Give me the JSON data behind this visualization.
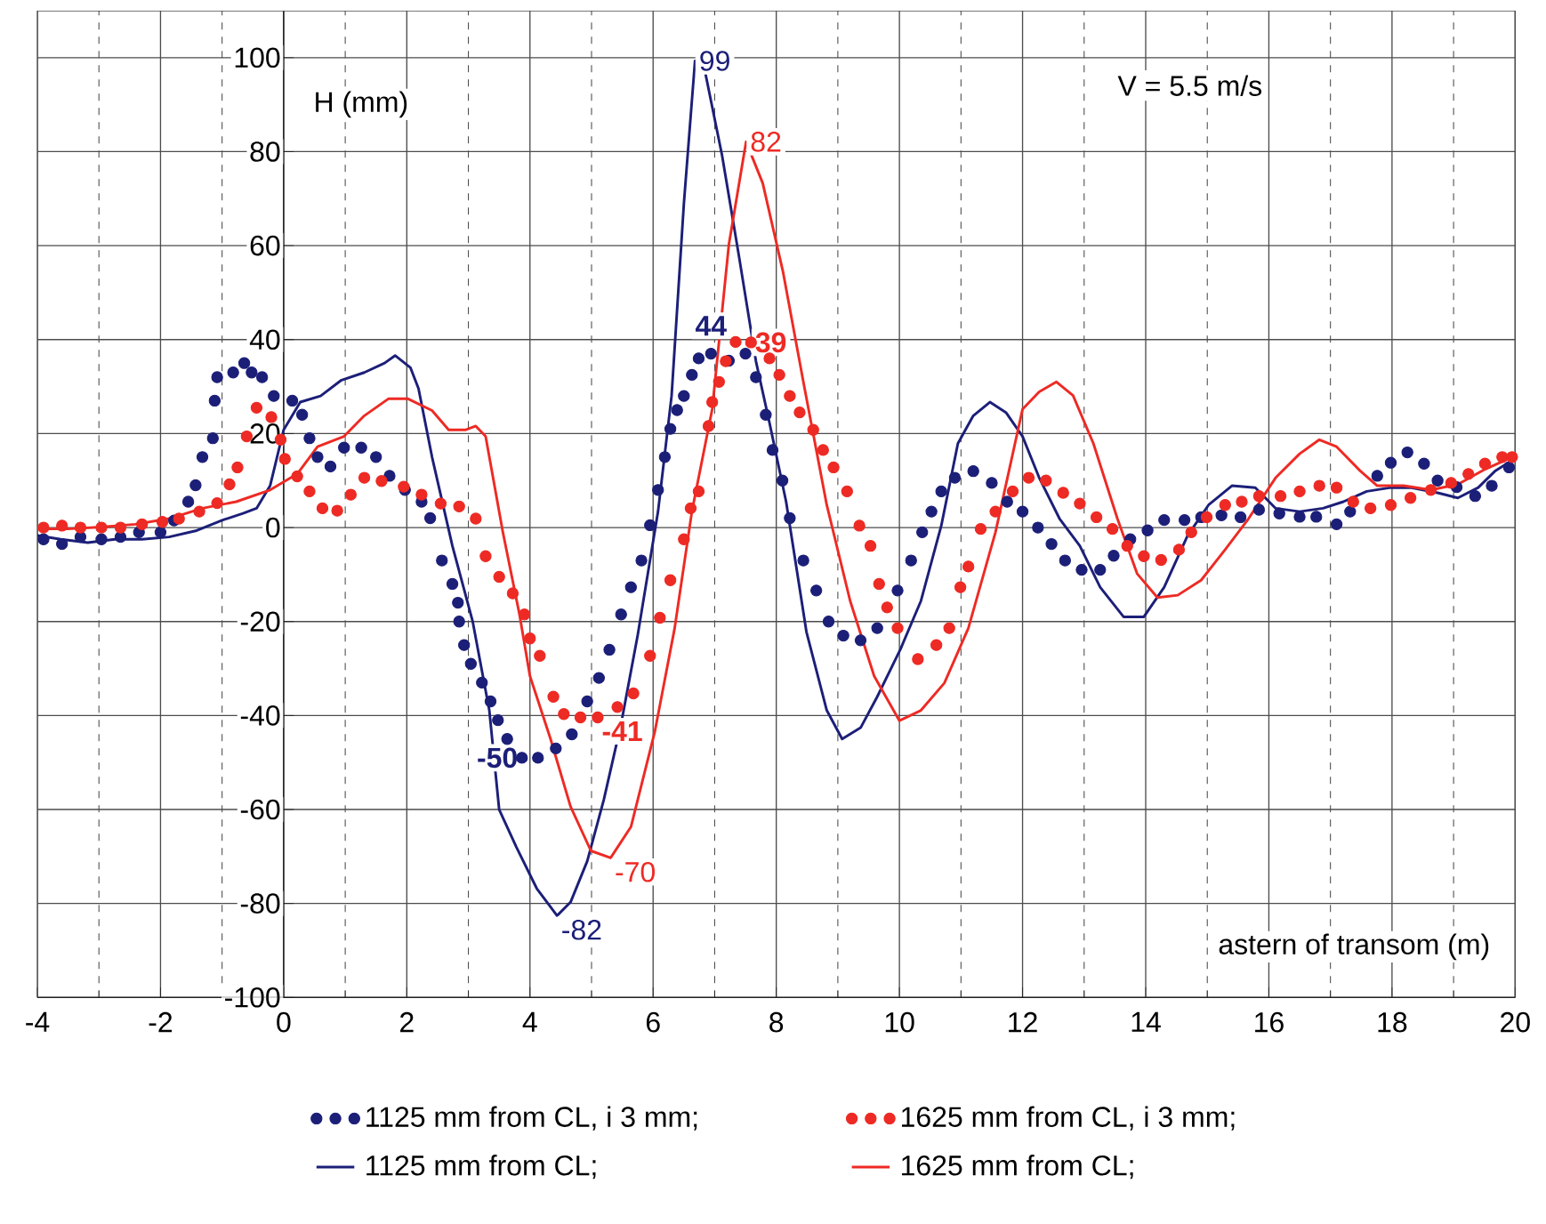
{
  "chart_data": {
    "type": "line",
    "xlabel": "astern of transom (m)",
    "ylabel": "H (mm)",
    "xlim": [
      -4,
      20
    ],
    "ylim": [
      -100,
      110
    ],
    "xticks": [
      -4,
      -2,
      0,
      2,
      4,
      6,
      8,
      10,
      12,
      14,
      16,
      18,
      20
    ],
    "yticks": [
      -100,
      -80,
      -60,
      -40,
      -20,
      0,
      20,
      40,
      60,
      80,
      100
    ],
    "grid": true,
    "legend": "bottom",
    "annotations": [
      "V = 5.5 m/s",
      {
        "text": "99",
        "x": 6.68,
        "y": 99.3
      },
      {
        "text": "82",
        "x": 7.51,
        "y": 82.1
      },
      {
        "text": "44",
        "x": 6.94,
        "y": 40
      },
      {
        "text": "39",
        "x": 7.59,
        "y": 39.4
      },
      {
        "text": "-50",
        "x": 3.87,
        "y": -49
      },
      {
        "text": "-41",
        "x": 5.1,
        "y": -40.4
      },
      {
        "text": "-82",
        "x": 4.44,
        "y": -82.6
      },
      {
        "text": "-70",
        "x": 5.31,
        "y": -70.3
      }
    ],
    "series": [
      {
        "name": "1125 mm from CL,  i 3 mm;",
        "type": "scatter",
        "marker": "circle",
        "color": "#1c1f78",
        "x": [
          -3.9,
          -3.6,
          -3.3,
          -2.96,
          -2.65,
          -2.35,
          -2.0,
          -1.78,
          -1.55,
          -1.43,
          -1.32,
          -1.15,
          -1.12,
          -1.08,
          -0.82,
          -0.64,
          -0.52,
          -0.35,
          -0.16,
          0.14,
          0.3,
          0.42,
          0.55,
          0.76,
          0.98,
          1.26,
          1.5,
          1.72,
          1.97,
          2.24,
          2.38,
          2.57,
          2.74,
          2.83,
          2.85,
          2.93,
          3.04,
          3.22,
          3.36,
          3.48,
          3.63,
          3.87,
          4.13,
          4.42,
          4.68,
          4.93,
          5.12,
          5.29,
          5.48,
          5.64,
          5.81,
          5.95,
          6.08,
          6.19,
          6.28,
          6.39,
          6.5,
          6.63,
          6.74,
          6.94,
          7.23,
          7.5,
          7.67,
          7.83,
          7.94,
          8.1,
          8.22,
          8.44,
          8.65,
          8.85,
          9.09,
          9.37,
          9.64,
          9.97,
          10.19,
          10.37,
          10.52,
          10.68,
          10.9,
          11.2,
          11.5,
          11.75,
          12.0,
          12.25,
          12.47,
          12.69,
          12.96,
          13.26,
          13.48,
          13.75,
          14.03,
          14.3,
          14.63,
          14.9,
          15.23,
          15.54,
          15.84,
          16.17,
          16.5,
          16.77,
          17.1,
          17.32,
          17.76,
          17.98,
          18.25,
          18.52,
          18.74,
          19.05,
          19.35,
          19.62,
          19.9
        ],
        "values": [
          -2.5,
          -3.5,
          -2,
          -2.5,
          -2,
          -1,
          -1,
          1.5,
          5.5,
          9,
          15,
          19,
          27,
          32,
          33,
          35,
          33,
          32,
          28,
          27,
          24,
          19,
          15,
          13,
          17,
          17,
          15,
          11,
          8,
          5.5,
          2,
          -7,
          -12,
          -16,
          -20,
          -25,
          -29,
          -33,
          -37,
          -41,
          -45,
          -49,
          -49,
          -47,
          -44,
          -37,
          -32,
          -26,
          -18.5,
          -12.7,
          -7,
          0.5,
          8,
          15,
          21,
          25,
          28,
          32.5,
          36,
          37,
          35.5,
          37,
          32,
          24,
          16.5,
          10,
          2,
          -7,
          -13.4,
          -20,
          -23,
          -24,
          -21.4,
          -13.4,
          -7,
          -1,
          3.4,
          7.7,
          10.6,
          12,
          9.5,
          5.5,
          3.4,
          0,
          -3.5,
          -7,
          -9,
          -9,
          -6,
          -2.5,
          -0.6,
          1.6,
          1.6,
          2.2,
          2.6,
          2.2,
          3.8,
          3,
          2.3,
          2.3,
          0.7,
          3.4,
          11,
          13.8,
          16,
          13.6,
          10,
          8.6,
          6.7,
          8.9,
          12.8
        ]
      },
      {
        "name": "1625 mm from  CL,  i 3 mm;",
        "type": "scatter",
        "marker": "circle",
        "color": "#ee2a24",
        "x": [
          -3.9,
          -3.6,
          -3.3,
          -2.96,
          -2.65,
          -2.3,
          -1.97,
          -1.7,
          -1.37,
          -1.08,
          -0.88,
          -0.75,
          -0.6,
          -0.44,
          -0.2,
          -0.05,
          0.02,
          0.22,
          0.42,
          0.63,
          0.87,
          1.09,
          1.31,
          1.59,
          1.95,
          2.24,
          2.55,
          2.85,
          3.12,
          3.28,
          3.5,
          3.72,
          3.91,
          4.0,
          4.16,
          4.38,
          4.55,
          4.82,
          5.1,
          5.42,
          5.68,
          5.95,
          6.11,
          6.28,
          6.5,
          6.61,
          6.74,
          6.9,
          6.96,
          7.07,
          7.18,
          7.34,
          7.59,
          7.89,
          8.05,
          8.22,
          8.38,
          8.6,
          8.76,
          8.93,
          9.15,
          9.35,
          9.53,
          9.67,
          9.8,
          9.97,
          10.3,
          10.6,
          10.81,
          10.99,
          11.12,
          11.32,
          11.56,
          11.84,
          12.1,
          12.38,
          12.66,
          12.93,
          13.2,
          13.46,
          13.7,
          13.97,
          14.25,
          14.54,
          14.74,
          14.99,
          15.29,
          15.56,
          15.84,
          16.19,
          16.5,
          16.82,
          17.1,
          17.37,
          17.65,
          17.98,
          18.3,
          18.63,
          18.96,
          19.24,
          19.51,
          19.79,
          19.95
        ],
        "values": [
          0,
          0.4,
          0,
          0,
          0,
          0.7,
          1.2,
          1.9,
          3.4,
          5.2,
          9.2,
          12.8,
          19.4,
          25.5,
          23.5,
          18.7,
          14.6,
          10.9,
          7.7,
          4.1,
          3.6,
          7,
          10.6,
          9.9,
          8.7,
          7,
          5.1,
          4.5,
          1.9,
          -6.1,
          -10.5,
          -14,
          -18.5,
          -23.6,
          -27.3,
          -36,
          -39.7,
          -40.4,
          -40.4,
          -38.2,
          -35.3,
          -27.3,
          -19.2,
          -11.2,
          -2.5,
          4.1,
          7.7,
          21.6,
          26.7,
          31,
          35.4,
          39.5,
          39.4,
          36,
          32.5,
          28,
          24.5,
          20.8,
          16.5,
          12.8,
          7.7,
          0.4,
          -3.9,
          -12,
          -17,
          -21.4,
          -28,
          -25,
          -21.4,
          -12.7,
          -8.3,
          -0.3,
          3.4,
          7.7,
          10.6,
          10,
          7.4,
          5.1,
          2.2,
          -0.3,
          -3.9,
          -6.1,
          -6.9,
          -4.7,
          -1,
          2.2,
          4.8,
          5.5,
          6.7,
          6.7,
          7.7,
          8.9,
          8.5,
          5.5,
          4.1,
          4.8,
          6.3,
          8,
          9.5,
          11.4,
          13.6,
          15,
          15
        ]
      },
      {
        "name": "1125 mm from CL;",
        "line_style": "solid",
        "color": "#1c1f78",
        "x": [
          -4,
          -3.62,
          -3.18,
          -2.74,
          -2.3,
          -1.86,
          -1.43,
          -0.99,
          -0.66,
          -0.44,
          -0.22,
          0,
          0.27,
          0.6,
          0.93,
          1.31,
          1.64,
          1.81,
          2.06,
          2.19,
          2.41,
          2.74,
          3.07,
          3.34,
          3.5,
          3.78,
          4.11,
          4.44,
          4.66,
          4.93,
          5.2,
          5.48,
          5.75,
          6.08,
          6.3,
          6.5,
          6.68,
          6.85,
          7.12,
          7.4,
          7.67,
          7.89,
          8.16,
          8.49,
          8.82,
          9.07,
          9.37,
          9.64,
          10.02,
          10.35,
          10.68,
          10.95,
          11.2,
          11.47,
          11.73,
          12,
          12.27,
          12.6,
          12.93,
          13.26,
          13.64,
          13.97,
          14.3,
          14.68,
          15.02,
          15.4,
          15.78,
          16.11,
          16.5,
          16.88,
          17.21,
          17.59,
          17.98,
          18.3,
          18.74,
          19.07,
          19.4,
          19.68,
          19.95
        ],
        "values": [
          -1.7,
          -2.5,
          -3.2,
          -2.5,
          -2.5,
          -2,
          -0.7,
          1.6,
          3,
          4.1,
          8.9,
          20.8,
          26.7,
          28,
          31.3,
          33,
          35,
          36.6,
          34,
          29.6,
          15,
          -3.9,
          -20,
          -38.9,
          -60,
          -68,
          -76.8,
          -82.6,
          -79.7,
          -71,
          -57.9,
          -41.8,
          -22.9,
          3.4,
          28,
          69,
          99.3,
          96.6,
          79.2,
          57.3,
          35.4,
          22.3,
          5.5,
          -22.2,
          -38.9,
          -45,
          -42.6,
          -36,
          -25.8,
          -15.6,
          0.4,
          17.9,
          23.8,
          26.7,
          24.5,
          19.4,
          10.6,
          1.9,
          -3.9,
          -12.7,
          -19,
          -19,
          -12.7,
          -1.7,
          4.8,
          8.9,
          8.5,
          4.1,
          3.4,
          4.1,
          5.5,
          7.7,
          8.5,
          8.5,
          7.4,
          6.3,
          8.5,
          12.1,
          14.3
        ]
      },
      {
        "name": "1625 mm from CL;",
        "line_style": "solid",
        "color": "#ee2a24",
        "x": [
          -4,
          -3.51,
          -2.96,
          -2.41,
          -1.86,
          -1.32,
          -0.77,
          -0.22,
          0.22,
          0.55,
          0.98,
          1.31,
          1.7,
          2.02,
          2.41,
          2.68,
          2.96,
          3.12,
          3.28,
          3.56,
          3.83,
          4,
          4.33,
          4.66,
          4.99,
          5.31,
          5.64,
          6.03,
          6.35,
          6.63,
          6.96,
          7.23,
          7.51,
          7.78,
          8.11,
          8.44,
          8.82,
          9.2,
          9.59,
          10,
          10.35,
          10.73,
          11.12,
          11.56,
          12,
          12.27,
          12.55,
          12.82,
          13.15,
          13.54,
          13.86,
          14.19,
          14.52,
          14.9,
          15.29,
          15.67,
          16.11,
          16.5,
          16.82,
          17.1,
          17.48,
          17.76,
          18.19,
          18.63,
          19.07,
          19.51,
          19.95
        ],
        "values": [
          -0.3,
          -0.3,
          0.1,
          0.7,
          1.9,
          4.1,
          5.5,
          8,
          11.4,
          17.2,
          19.4,
          23.8,
          27.4,
          27.4,
          24.9,
          20.8,
          20.8,
          21.6,
          19.4,
          -1,
          -18.5,
          -31.6,
          -44.8,
          -59.4,
          -68.8,
          -70.3,
          -63.7,
          -43.3,
          -21.4,
          3.4,
          25.2,
          60.2,
          82.1,
          73.3,
          54.4,
          31,
          4.8,
          -15.6,
          -31.6,
          -41.1,
          -38.9,
          -33.1,
          -21.4,
          -1,
          25.2,
          28.9,
          31,
          28.1,
          17.9,
          1.9,
          -9.8,
          -14.9,
          -14.4,
          -11.2,
          -4.7,
          1.9,
          10.6,
          15.7,
          18.7,
          17.2,
          12.1,
          8.9,
          8.9,
          8,
          9.2,
          12.4,
          15
        ]
      }
    ]
  }
}
